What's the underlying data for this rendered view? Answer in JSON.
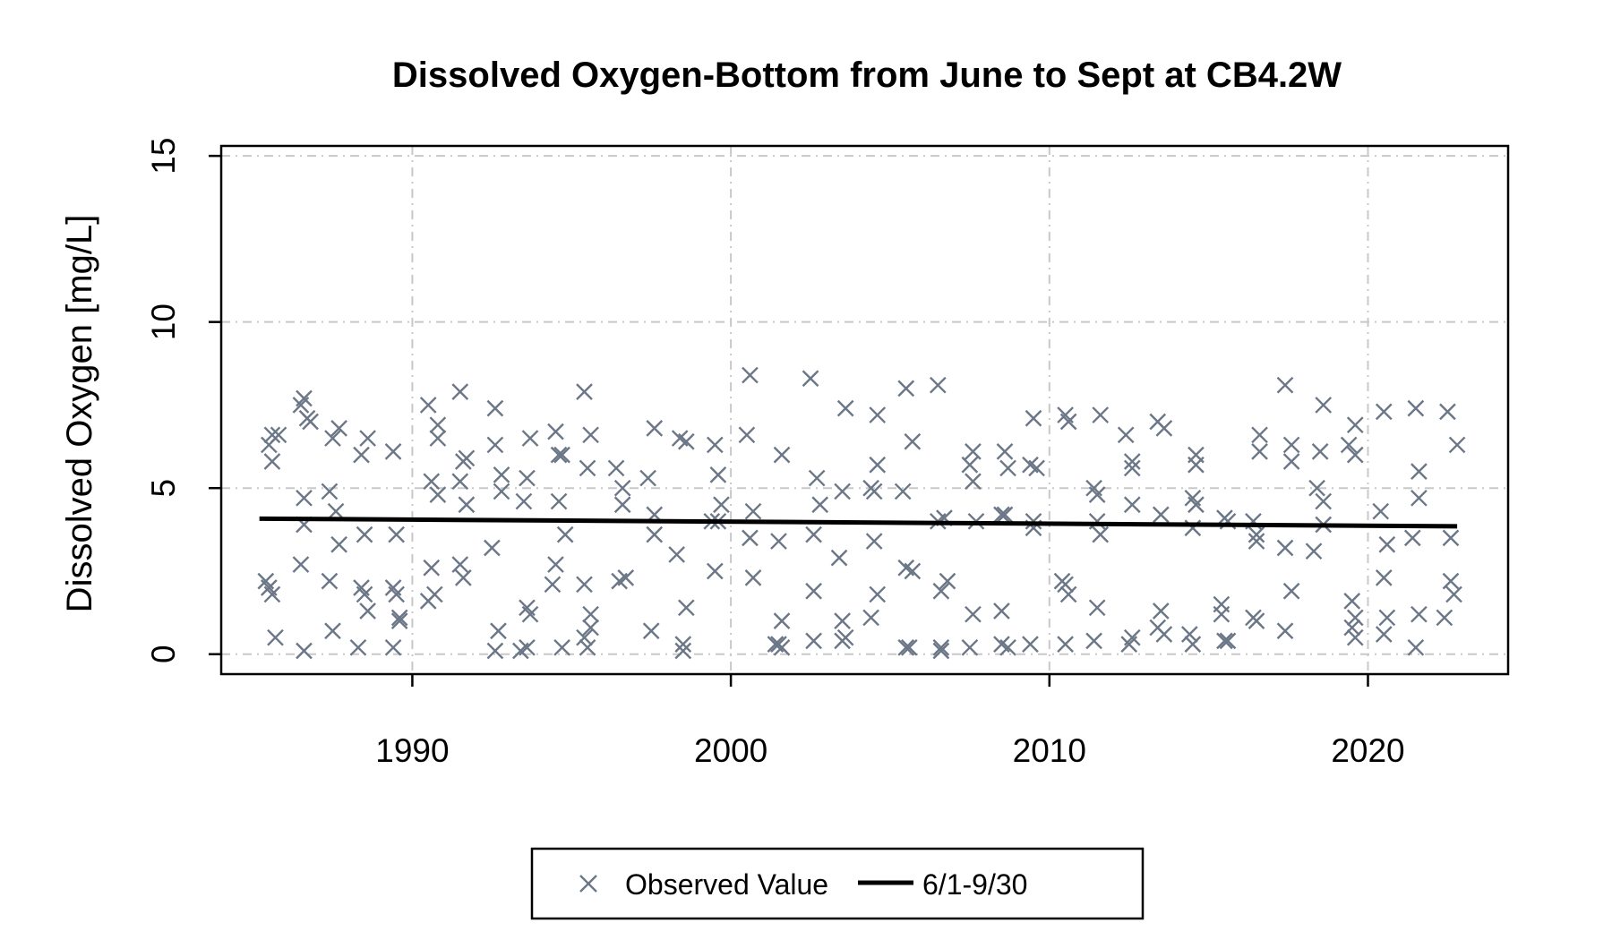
{
  "chart_data": {
    "type": "scatter",
    "title": "Dissolved Oxygen-Bottom from June to Sept at CB4.2W",
    "xlabel": "",
    "ylabel": "Dissolved Oxygen [mg/L]",
    "xlim": [
      1984,
      2024.4
    ],
    "ylim": [
      -0.6,
      15.3
    ],
    "xticks": [
      1990,
      2000,
      2010,
      2020
    ],
    "yticks": [
      0,
      5,
      10,
      15
    ],
    "grid": true,
    "legend": {
      "placement": "bottom",
      "entries": [
        {
          "label": "Observed Value",
          "marker": "x",
          "color": "#6b7787"
        },
        {
          "label": "6/1-9/30",
          "marker": "line",
          "color": "#000000"
        }
      ]
    },
    "series": [
      {
        "name": "Observed Value",
        "color": "#6b7787",
        "points": [
          [
            1985.4,
            2.2
          ],
          [
            1985.5,
            2.0
          ],
          [
            1985.6,
            1.8
          ],
          [
            1985.5,
            6.3
          ],
          [
            1985.6,
            6.6
          ],
          [
            1985.6,
            5.8
          ],
          [
            1985.7,
            0.5
          ],
          [
            1985.8,
            6.6
          ],
          [
            1986.5,
            7.5
          ],
          [
            1986.6,
            7.7
          ],
          [
            1986.7,
            7.1
          ],
          [
            1986.8,
            7.0
          ],
          [
            1986.6,
            4.7
          ],
          [
            1986.6,
            3.9
          ],
          [
            1986.5,
            2.7
          ],
          [
            1986.6,
            0.1
          ],
          [
            1987.4,
            4.9
          ],
          [
            1987.5,
            6.5
          ],
          [
            1987.7,
            6.8
          ],
          [
            1987.6,
            4.3
          ],
          [
            1987.7,
            3.3
          ],
          [
            1987.4,
            2.2
          ],
          [
            1987.5,
            0.7
          ],
          [
            1988.4,
            6.0
          ],
          [
            1988.6,
            6.5
          ],
          [
            1988.5,
            3.6
          ],
          [
            1988.4,
            2.0
          ],
          [
            1988.5,
            1.8
          ],
          [
            1988.6,
            1.3
          ],
          [
            1988.3,
            0.2
          ],
          [
            1989.4,
            6.1
          ],
          [
            1989.5,
            3.6
          ],
          [
            1989.4,
            2.0
          ],
          [
            1989.5,
            1.8
          ],
          [
            1989.6,
            1.0
          ],
          [
            1989.6,
            1.1
          ],
          [
            1989.4,
            0.2
          ],
          [
            1990.5,
            7.5
          ],
          [
            1990.8,
            6.9
          ],
          [
            1990.8,
            6.5
          ],
          [
            1990.6,
            5.2
          ],
          [
            1990.8,
            4.8
          ],
          [
            1990.6,
            2.6
          ],
          [
            1990.7,
            1.8
          ],
          [
            1990.5,
            1.6
          ],
          [
            1991.5,
            7.9
          ],
          [
            1991.6,
            5.8
          ],
          [
            1991.7,
            5.9
          ],
          [
            1991.5,
            5.2
          ],
          [
            1991.7,
            4.5
          ],
          [
            1991.5,
            2.7
          ],
          [
            1991.6,
            2.3
          ],
          [
            1992.6,
            7.4
          ],
          [
            1992.6,
            6.3
          ],
          [
            1992.8,
            5.4
          ],
          [
            1992.8,
            4.9
          ],
          [
            1992.5,
            3.2
          ],
          [
            1992.7,
            0.7
          ],
          [
            1992.6,
            0.1
          ],
          [
            1993.5,
            4.6
          ],
          [
            1993.6,
            1.4
          ],
          [
            1993.7,
            1.2
          ],
          [
            1993.7,
            6.5
          ],
          [
            1993.6,
            5.3
          ],
          [
            1993.4,
            0.1
          ],
          [
            1993.6,
            0.2
          ],
          [
            1994.5,
            6.7
          ],
          [
            1994.6,
            6.0
          ],
          [
            1994.7,
            6.0
          ],
          [
            1994.6,
            4.6
          ],
          [
            1994.8,
            3.6
          ],
          [
            1994.5,
            2.7
          ],
          [
            1994.4,
            2.1
          ],
          [
            1994.7,
            0.2
          ],
          [
            1995.4,
            7.9
          ],
          [
            1995.6,
            6.6
          ],
          [
            1995.5,
            5.6
          ],
          [
            1995.4,
            2.1
          ],
          [
            1995.6,
            1.2
          ],
          [
            1995.6,
            0.8
          ],
          [
            1995.5,
            0.2
          ],
          [
            1995.4,
            0.5
          ],
          [
            1996.4,
            5.6
          ],
          [
            1996.6,
            5.0
          ],
          [
            1996.5,
            2.2
          ],
          [
            1996.6,
            4.5
          ],
          [
            1996.7,
            2.3
          ],
          [
            1997.6,
            6.8
          ],
          [
            1997.4,
            5.3
          ],
          [
            1997.6,
            4.2
          ],
          [
            1997.6,
            3.6
          ],
          [
            1997.5,
            0.7
          ],
          [
            1998.4,
            6.5
          ],
          [
            1998.6,
            6.4
          ],
          [
            1998.3,
            3.0
          ],
          [
            1998.6,
            1.4
          ],
          [
            1998.5,
            0.3
          ],
          [
            1998.5,
            0.1
          ],
          [
            1999.5,
            6.3
          ],
          [
            1999.6,
            5.4
          ],
          [
            1999.7,
            4.5
          ],
          [
            1999.4,
            4.0
          ],
          [
            1999.6,
            4.0
          ],
          [
            1999.5,
            2.5
          ],
          [
            2000.6,
            8.4
          ],
          [
            2000.5,
            6.6
          ],
          [
            2000.7,
            4.3
          ],
          [
            2000.6,
            3.5
          ],
          [
            2000.7,
            2.3
          ],
          [
            2001.6,
            6.0
          ],
          [
            2001.5,
            3.4
          ],
          [
            2001.6,
            1.0
          ],
          [
            2001.4,
            0.3
          ],
          [
            2001.6,
            0.2
          ],
          [
            2001.5,
            0.3
          ],
          [
            2002.5,
            8.3
          ],
          [
            2002.7,
            5.3
          ],
          [
            2002.8,
            4.5
          ],
          [
            2002.6,
            3.6
          ],
          [
            2002.6,
            1.9
          ],
          [
            2002.6,
            0.4
          ],
          [
            2003.6,
            7.4
          ],
          [
            2003.5,
            4.9
          ],
          [
            2003.4,
            2.9
          ],
          [
            2003.5,
            1.0
          ],
          [
            2003.6,
            0.5
          ],
          [
            2003.5,
            0.4
          ],
          [
            2004.6,
            7.2
          ],
          [
            2004.6,
            5.7
          ],
          [
            2004.4,
            5.0
          ],
          [
            2004.5,
            4.9
          ],
          [
            2004.5,
            3.4
          ],
          [
            2004.6,
            1.8
          ],
          [
            2004.4,
            1.1
          ],
          [
            2005.5,
            8.0
          ],
          [
            2005.7,
            6.4
          ],
          [
            2005.4,
            4.9
          ],
          [
            2005.5,
            2.6
          ],
          [
            2005.7,
            2.5
          ],
          [
            2005.6,
            0.2
          ],
          [
            2005.5,
            0.2
          ],
          [
            2006.5,
            8.1
          ],
          [
            2006.7,
            4.1
          ],
          [
            2006.5,
            4.0
          ],
          [
            2006.6,
            1.9
          ],
          [
            2006.8,
            2.2
          ],
          [
            2006.6,
            0.1
          ],
          [
            2006.6,
            0.2
          ],
          [
            2007.6,
            6.1
          ],
          [
            2007.5,
            5.7
          ],
          [
            2007.6,
            5.2
          ],
          [
            2007.7,
            4.0
          ],
          [
            2007.6,
            1.2
          ],
          [
            2007.5,
            0.2
          ],
          [
            2008.6,
            6.1
          ],
          [
            2008.7,
            5.6
          ],
          [
            2008.5,
            4.2
          ],
          [
            2008.6,
            4.2
          ],
          [
            2008.5,
            1.3
          ],
          [
            2008.5,
            0.3
          ],
          [
            2008.7,
            0.2
          ],
          [
            2009.5,
            7.1
          ],
          [
            2009.6,
            5.6
          ],
          [
            2009.4,
            5.7
          ],
          [
            2009.5,
            4.0
          ],
          [
            2009.5,
            3.8
          ],
          [
            2009.4,
            0.3
          ],
          [
            2010.5,
            7.2
          ],
          [
            2010.6,
            7.0
          ],
          [
            2010.4,
            2.2
          ],
          [
            2010.5,
            2.1
          ],
          [
            2010.6,
            1.8
          ],
          [
            2010.5,
            0.3
          ],
          [
            2011.6,
            7.2
          ],
          [
            2011.4,
            5.0
          ],
          [
            2011.5,
            4.8
          ],
          [
            2011.5,
            4.0
          ],
          [
            2011.6,
            3.6
          ],
          [
            2011.5,
            1.4
          ],
          [
            2011.4,
            0.4
          ],
          [
            2012.4,
            6.6
          ],
          [
            2012.6,
            5.8
          ],
          [
            2012.6,
            5.6
          ],
          [
            2012.6,
            4.5
          ],
          [
            2012.6,
            0.5
          ],
          [
            2012.5,
            0.3
          ],
          [
            2013.4,
            7.0
          ],
          [
            2013.6,
            6.8
          ],
          [
            2013.5,
            4.2
          ],
          [
            2013.5,
            1.3
          ],
          [
            2013.4,
            0.8
          ],
          [
            2013.6,
            0.6
          ],
          [
            2014.6,
            6.0
          ],
          [
            2014.6,
            5.7
          ],
          [
            2014.5,
            4.7
          ],
          [
            2014.6,
            4.5
          ],
          [
            2014.5,
            3.8
          ],
          [
            2014.4,
            0.6
          ],
          [
            2014.5,
            0.3
          ],
          [
            2015.5,
            4.1
          ],
          [
            2015.6,
            4.0
          ],
          [
            2015.4,
            1.5
          ],
          [
            2015.4,
            1.2
          ],
          [
            2015.5,
            0.4
          ],
          [
            2015.6,
            0.4
          ],
          [
            2016.6,
            6.6
          ],
          [
            2016.6,
            6.1
          ],
          [
            2016.4,
            4.0
          ],
          [
            2016.5,
            3.6
          ],
          [
            2016.5,
            3.4
          ],
          [
            2016.5,
            1.0
          ],
          [
            2016.4,
            1.1
          ],
          [
            2017.4,
            8.1
          ],
          [
            2017.6,
            6.3
          ],
          [
            2017.6,
            5.8
          ],
          [
            2017.4,
            3.2
          ],
          [
            2017.6,
            1.9
          ],
          [
            2017.4,
            0.7
          ],
          [
            2018.6,
            7.5
          ],
          [
            2018.5,
            6.1
          ],
          [
            2018.4,
            5.0
          ],
          [
            2018.6,
            4.6
          ],
          [
            2018.6,
            3.9
          ],
          [
            2018.3,
            3.1
          ],
          [
            2019.6,
            6.9
          ],
          [
            2019.4,
            6.3
          ],
          [
            2019.6,
            6.0
          ],
          [
            2019.5,
            1.6
          ],
          [
            2019.6,
            1.1
          ],
          [
            2019.5,
            0.8
          ],
          [
            2019.6,
            0.5
          ],
          [
            2020.5,
            7.3
          ],
          [
            2020.4,
            4.3
          ],
          [
            2020.6,
            3.3
          ],
          [
            2020.5,
            2.3
          ],
          [
            2020.6,
            1.1
          ],
          [
            2020.5,
            0.6
          ],
          [
            2021.5,
            7.4
          ],
          [
            2021.6,
            5.5
          ],
          [
            2021.6,
            4.7
          ],
          [
            2021.4,
            3.5
          ],
          [
            2021.6,
            1.2
          ],
          [
            2021.5,
            0.2
          ],
          [
            2022.5,
            7.3
          ],
          [
            2022.8,
            6.3
          ],
          [
            2022.6,
            3.5
          ],
          [
            2022.6,
            2.2
          ],
          [
            2022.7,
            1.8
          ],
          [
            2022.4,
            1.1
          ]
        ]
      },
      {
        "name": "6/1-9/30",
        "color": "#000000",
        "line": [
          [
            1985.2,
            4.08
          ],
          [
            2022.8,
            3.85
          ]
        ]
      }
    ]
  }
}
